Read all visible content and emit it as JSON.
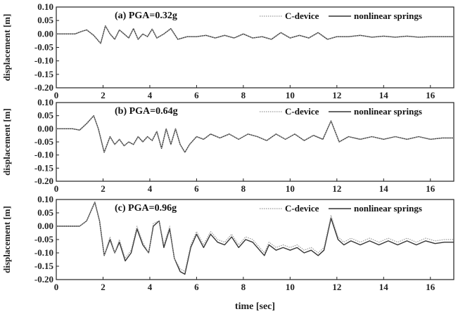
{
  "chart_data": [
    {
      "type": "line",
      "title": "(a) PGA=0.32g",
      "ylabel": "displacement [m]",
      "xlabel": "",
      "xlim": [
        0,
        17
      ],
      "ylim": [
        -0.2,
        0.1
      ],
      "x_ticks": [
        "0",
        "2",
        "4",
        "6",
        "8",
        "10",
        "12",
        "14",
        "16"
      ],
      "y_ticks": [
        "0.10",
        "0.05",
        "0.00",
        "-0.05",
        "-0.10",
        "-0.15",
        "-0.20"
      ],
      "grid": false,
      "legend_position": "top-right",
      "series": [
        {
          "name": "C-device",
          "style": "dotted",
          "color": "#999999",
          "x": [
            0,
            0.8,
            1.1,
            1.3,
            1.6,
            1.9,
            2.1,
            2.3,
            2.5,
            2.7,
            2.9,
            3.1,
            3.3,
            3.5,
            3.7,
            3.9,
            4.1,
            4.3,
            4.6,
            4.9,
            5.2,
            5.6,
            6.0,
            6.4,
            6.8,
            7.2,
            7.6,
            8.0,
            8.4,
            8.8,
            9.2,
            9.6,
            10.0,
            10.4,
            10.8,
            11.2,
            11.6,
            12.0,
            12.5,
            13.0,
            13.5,
            14.0,
            14.5,
            15.0,
            15.5,
            16.0,
            16.5,
            17.0
          ],
          "y": [
            0,
            0,
            0.01,
            0.015,
            -0.005,
            -0.035,
            0.03,
            0.0,
            -0.02,
            0.015,
            0.0,
            -0.015,
            0.02,
            -0.02,
            0.0,
            -0.01,
            0.018,
            -0.015,
            0.0,
            0.02,
            -0.02,
            -0.01,
            -0.01,
            -0.005,
            -0.015,
            -0.005,
            -0.015,
            0.0,
            -0.015,
            -0.01,
            -0.02,
            0.005,
            -0.015,
            -0.005,
            -0.015,
            0.005,
            -0.02,
            -0.01,
            -0.01,
            -0.005,
            -0.012,
            -0.008,
            -0.012,
            -0.008,
            -0.012,
            -0.01,
            -0.01,
            -0.01
          ]
        },
        {
          "name": "nonlinear springs",
          "style": "solid",
          "color": "#333333",
          "x": [
            0,
            0.8,
            1.1,
            1.3,
            1.6,
            1.9,
            2.1,
            2.3,
            2.5,
            2.7,
            2.9,
            3.1,
            3.3,
            3.5,
            3.7,
            3.9,
            4.1,
            4.3,
            4.6,
            4.9,
            5.2,
            5.6,
            6.0,
            6.4,
            6.8,
            7.2,
            7.6,
            8.0,
            8.4,
            8.8,
            9.2,
            9.6,
            10.0,
            10.4,
            10.8,
            11.2,
            11.6,
            12.0,
            12.5,
            13.0,
            13.5,
            14.0,
            14.5,
            15.0,
            15.5,
            16.0,
            16.5,
            17.0
          ],
          "y": [
            0,
            0,
            0.01,
            0.015,
            -0.005,
            -0.035,
            0.03,
            0.0,
            -0.02,
            0.015,
            0.0,
            -0.015,
            0.02,
            -0.02,
            0.0,
            -0.01,
            0.018,
            -0.015,
            0.0,
            0.02,
            -0.02,
            -0.01,
            -0.01,
            -0.005,
            -0.015,
            -0.005,
            -0.015,
            0.0,
            -0.015,
            -0.01,
            -0.02,
            0.005,
            -0.015,
            -0.005,
            -0.015,
            0.005,
            -0.02,
            -0.01,
            -0.01,
            -0.005,
            -0.012,
            -0.008,
            -0.012,
            -0.008,
            -0.012,
            -0.01,
            -0.01,
            -0.01
          ]
        }
      ]
    },
    {
      "type": "line",
      "title": "(b) PGA=0.64g",
      "ylabel": "displacement [m]",
      "xlabel": "",
      "xlim": [
        0,
        17
      ],
      "ylim": [
        -0.2,
        0.1
      ],
      "x_ticks": [
        "0",
        "2",
        "4",
        "6",
        "8",
        "10",
        "12",
        "14",
        "16"
      ],
      "y_ticks": [
        "0.10",
        "0.05",
        "0.00",
        "-0.05",
        "-0.10",
        "-0.15",
        "-0.20"
      ],
      "grid": false,
      "legend_position": "top-right",
      "series": [
        {
          "name": "C-device",
          "style": "dotted",
          "color": "#999999",
          "x": [
            0,
            0.7,
            1.0,
            1.3,
            1.6,
            1.8,
            2.05,
            2.3,
            2.5,
            2.7,
            2.9,
            3.1,
            3.3,
            3.5,
            3.7,
            3.9,
            4.1,
            4.3,
            4.5,
            4.7,
            4.9,
            5.1,
            5.3,
            5.5,
            5.7,
            6.0,
            6.3,
            6.6,
            7.0,
            7.4,
            7.8,
            8.2,
            8.6,
            9.0,
            9.4,
            9.8,
            10.2,
            10.6,
            11.0,
            11.4,
            11.75,
            12.1,
            12.5,
            13.0,
            13.5,
            14.0,
            14.5,
            15.0,
            15.5,
            16.0,
            16.5,
            17.0
          ],
          "y": [
            0,
            0,
            -0.005,
            0.02,
            0.05,
            0.0,
            -0.09,
            -0.03,
            -0.06,
            -0.04,
            -0.065,
            -0.05,
            -0.06,
            -0.03,
            -0.05,
            -0.03,
            -0.045,
            -0.01,
            -0.075,
            0.0,
            -0.06,
            0.0,
            -0.06,
            -0.09,
            -0.06,
            -0.03,
            -0.04,
            -0.02,
            -0.035,
            -0.02,
            -0.04,
            -0.02,
            -0.03,
            -0.045,
            -0.02,
            -0.04,
            -0.02,
            -0.045,
            -0.025,
            -0.04,
            0.03,
            -0.05,
            -0.03,
            -0.04,
            -0.03,
            -0.04,
            -0.03,
            -0.04,
            -0.03,
            -0.04,
            -0.035,
            -0.035
          ]
        },
        {
          "name": "nonlinear springs",
          "style": "solid",
          "color": "#333333",
          "x": [
            0,
            0.7,
            1.0,
            1.3,
            1.6,
            1.8,
            2.05,
            2.3,
            2.5,
            2.7,
            2.9,
            3.1,
            3.3,
            3.5,
            3.7,
            3.9,
            4.1,
            4.3,
            4.5,
            4.7,
            4.9,
            5.1,
            5.3,
            5.5,
            5.7,
            6.0,
            6.3,
            6.6,
            7.0,
            7.4,
            7.8,
            8.2,
            8.6,
            9.0,
            9.4,
            9.8,
            10.2,
            10.6,
            11.0,
            11.4,
            11.75,
            12.1,
            12.5,
            13.0,
            13.5,
            14.0,
            14.5,
            15.0,
            15.5,
            16.0,
            16.5,
            17.0
          ],
          "y": [
            0,
            0,
            -0.005,
            0.02,
            0.05,
            0.0,
            -0.09,
            -0.03,
            -0.06,
            -0.04,
            -0.065,
            -0.05,
            -0.06,
            -0.03,
            -0.05,
            -0.03,
            -0.045,
            -0.01,
            -0.075,
            0.0,
            -0.06,
            0.0,
            -0.06,
            -0.09,
            -0.06,
            -0.03,
            -0.04,
            -0.02,
            -0.035,
            -0.02,
            -0.04,
            -0.02,
            -0.03,
            -0.045,
            -0.02,
            -0.04,
            -0.02,
            -0.045,
            -0.025,
            -0.04,
            0.03,
            -0.05,
            -0.03,
            -0.04,
            -0.03,
            -0.04,
            -0.03,
            -0.04,
            -0.03,
            -0.04,
            -0.035,
            -0.035
          ]
        }
      ]
    },
    {
      "type": "line",
      "title": "(c) PGA=0.96g",
      "ylabel": "displacement [m]",
      "xlabel": "time [sec]",
      "xlim": [
        0,
        17
      ],
      "ylim": [
        -0.2,
        0.1
      ],
      "x_ticks": [
        "0",
        "2",
        "4",
        "6",
        "8",
        "10",
        "12",
        "14",
        "16"
      ],
      "y_ticks": [
        "0.10",
        "0.05",
        "0.00",
        "-0.05",
        "-0.10",
        "-0.15",
        "-0.20"
      ],
      "grid": false,
      "legend_position": "top-right",
      "series": [
        {
          "name": "C-device",
          "style": "dotted",
          "color": "#999999",
          "x": [
            0,
            0.7,
            1.0,
            1.3,
            1.65,
            1.85,
            2.05,
            2.3,
            2.5,
            2.7,
            2.95,
            3.2,
            3.45,
            3.7,
            3.95,
            4.15,
            4.4,
            4.6,
            4.85,
            5.05,
            5.3,
            5.5,
            5.75,
            6.0,
            6.3,
            6.6,
            6.9,
            7.2,
            7.5,
            7.8,
            8.1,
            8.4,
            8.7,
            8.9,
            9.1,
            9.4,
            9.7,
            10.0,
            10.3,
            10.6,
            10.9,
            11.2,
            11.45,
            11.75,
            12.05,
            12.3,
            12.6,
            13.0,
            13.4,
            13.8,
            14.2,
            14.6,
            15.0,
            15.4,
            15.8,
            16.2,
            16.6,
            17.0
          ],
          "y": [
            0,
            0,
            0.0,
            0.02,
            0.09,
            0.02,
            -0.11,
            -0.04,
            -0.1,
            -0.05,
            -0.12,
            -0.09,
            0.0,
            -0.06,
            -0.1,
            0.01,
            0.02,
            -0.07,
            0.0,
            -0.12,
            -0.16,
            -0.17,
            -0.07,
            -0.02,
            -0.07,
            -0.02,
            -0.05,
            -0.06,
            -0.03,
            -0.07,
            -0.04,
            -0.05,
            -0.08,
            -0.1,
            -0.06,
            -0.08,
            -0.07,
            -0.08,
            -0.07,
            -0.09,
            -0.08,
            -0.1,
            -0.08,
            0.04,
            -0.04,
            -0.06,
            -0.045,
            -0.06,
            -0.045,
            -0.06,
            -0.045,
            -0.06,
            -0.045,
            -0.06,
            -0.045,
            -0.055,
            -0.05,
            -0.05
          ]
        },
        {
          "name": "nonlinear springs",
          "style": "solid",
          "color": "#333333",
          "x": [
            0,
            0.7,
            1.0,
            1.3,
            1.65,
            1.85,
            2.05,
            2.3,
            2.5,
            2.7,
            2.95,
            3.2,
            3.45,
            3.7,
            3.95,
            4.15,
            4.4,
            4.6,
            4.85,
            5.05,
            5.3,
            5.5,
            5.75,
            6.0,
            6.3,
            6.6,
            6.9,
            7.2,
            7.5,
            7.8,
            8.1,
            8.4,
            8.7,
            8.9,
            9.1,
            9.4,
            9.7,
            10.0,
            10.3,
            10.6,
            10.9,
            11.2,
            11.45,
            11.75,
            12.05,
            12.3,
            12.6,
            13.0,
            13.4,
            13.8,
            14.2,
            14.6,
            15.0,
            15.4,
            15.8,
            16.2,
            16.6,
            17.0
          ],
          "y": [
            0,
            0,
            0.0,
            0.02,
            0.09,
            0.02,
            -0.11,
            -0.05,
            -0.1,
            -0.06,
            -0.13,
            -0.1,
            -0.01,
            -0.07,
            -0.1,
            0.0,
            0.02,
            -0.08,
            -0.01,
            -0.12,
            -0.17,
            -0.18,
            -0.08,
            -0.03,
            -0.08,
            -0.03,
            -0.06,
            -0.07,
            -0.04,
            -0.08,
            -0.05,
            -0.06,
            -0.09,
            -0.11,
            -0.07,
            -0.09,
            -0.08,
            -0.09,
            -0.08,
            -0.1,
            -0.09,
            -0.11,
            -0.09,
            0.03,
            -0.05,
            -0.07,
            -0.055,
            -0.07,
            -0.055,
            -0.07,
            -0.055,
            -0.07,
            -0.055,
            -0.07,
            -0.055,
            -0.065,
            -0.06,
            -0.06
          ]
        }
      ]
    }
  ]
}
